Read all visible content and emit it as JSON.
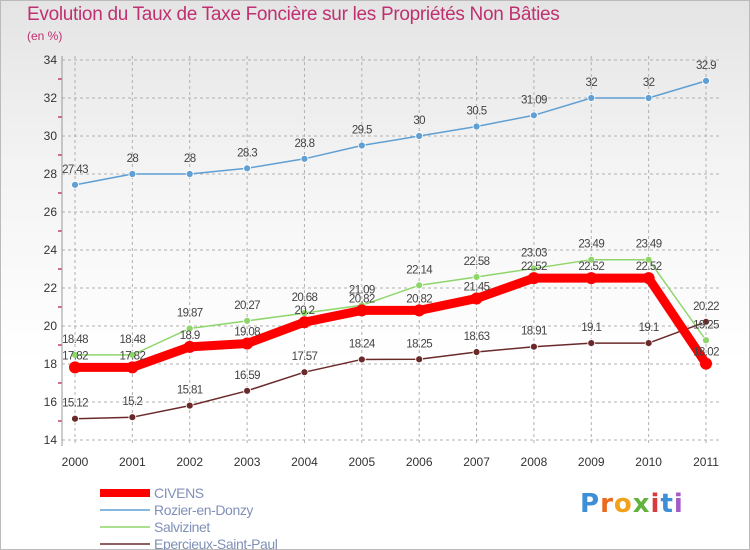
{
  "chart_data": {
    "type": "line",
    "title": "Evolution du Taux de Taxe Foncière sur les Propriétés Non Bâties",
    "subtitle": "(en %)",
    "xlabel": "",
    "ylabel": "",
    "categories": [
      "2000",
      "2001",
      "2002",
      "2003",
      "2004",
      "2005",
      "2006",
      "2007",
      "2008",
      "2009",
      "2010",
      "2011"
    ],
    "ylim": [
      14,
      34
    ],
    "yticks": [
      "14",
      "16",
      "18",
      "20",
      "22",
      "24",
      "26",
      "28",
      "30",
      "32",
      "34"
    ],
    "grid": "horizontal dashed",
    "legend_position": "bottom-left",
    "series": [
      {
        "name": "CIVENS",
        "color": "#ff0000",
        "values": [
          17.82,
          17.82,
          18.9,
          19.08,
          20.2,
          20.82,
          20.82,
          21.45,
          22.52,
          22.52,
          22.52,
          18.02
        ],
        "labels": [
          "17.82",
          "17.82",
          "18.9",
          "19.08",
          "20.2",
          "20.82",
          "20.82",
          "21.45",
          "22.52",
          "22.52",
          "22.52",
          "18.02"
        ]
      },
      {
        "name": "Rozier-en-Donzy",
        "color": "#5f9fd3",
        "values": [
          27.43,
          28,
          28,
          28.3,
          28.8,
          29.5,
          30,
          30.5,
          31.09,
          32,
          32,
          32.9
        ],
        "labels": [
          "27.43",
          "28",
          "28",
          "28.3",
          "28.8",
          "29.5",
          "30",
          "30.5",
          "31.09",
          "32",
          "32",
          "32.9"
        ]
      },
      {
        "name": "Salvizinet",
        "color": "#8fd66a",
        "values": [
          18.48,
          18.48,
          19.87,
          20.27,
          20.68,
          21.09,
          22.14,
          22.58,
          23.03,
          23.49,
          23.49,
          19.25
        ],
        "labels": [
          "18.48",
          "18.48",
          "19.87",
          "20.27",
          "20.68",
          "21.09",
          "22.14",
          "22.58",
          "23.03",
          "23.49",
          "23.49",
          "19.25"
        ]
      },
      {
        "name": "Epercieux-Saint-Paul",
        "color": "#6b2a2a",
        "values": [
          15.12,
          15.2,
          15.81,
          16.59,
          17.57,
          18.24,
          18.25,
          18.63,
          18.91,
          19.1,
          19.1,
          20.22
        ],
        "labels": [
          "15.12",
          "15.2",
          "15.81",
          "16.59",
          "17.57",
          "18.24",
          "18.25",
          "18.63",
          "18.91",
          "19.1",
          "19.1",
          "20.22"
        ]
      }
    ]
  },
  "branding": {
    "logo_letters": [
      "P",
      "r",
      "o",
      "x",
      "i",
      "t",
      "i"
    ]
  }
}
